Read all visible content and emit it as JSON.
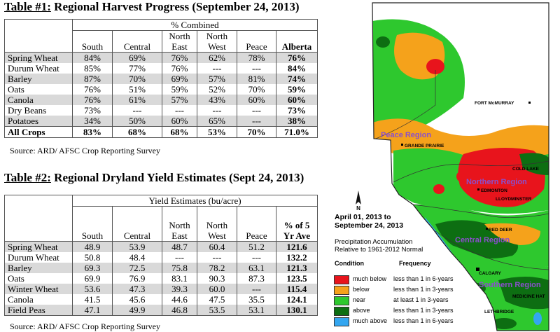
{
  "table1": {
    "title_prefix": "Table #1:",
    "title_rest": " Regional Harvest Progress (September 24, 2013)",
    "group_header": "% Combined",
    "columns": [
      {
        "line1": "",
        "line2": "South"
      },
      {
        "line1": "",
        "line2": "Central"
      },
      {
        "line1": "North",
        "line2": "East"
      },
      {
        "line1": "North",
        "line2": "West"
      },
      {
        "line1": "",
        "line2": "Peace"
      },
      {
        "line1": "",
        "line2": "Alberta"
      }
    ],
    "rows": [
      {
        "crop": "Spring Wheat",
        "values": [
          "84%",
          "69%",
          "76%",
          "62%",
          "78%",
          "76%"
        ]
      },
      {
        "crop": "Durum Wheat",
        "values": [
          "85%",
          "77%",
          "76%",
          "---",
          "---",
          "84%"
        ]
      },
      {
        "crop": "Barley",
        "values": [
          "87%",
          "70%",
          "69%",
          "57%",
          "81%",
          "74%"
        ]
      },
      {
        "crop": "Oats",
        "values": [
          "76%",
          "51%",
          "59%",
          "52%",
          "70%",
          "59%"
        ]
      },
      {
        "crop": "Canola",
        "values": [
          "76%",
          "61%",
          "57%",
          "43%",
          "60%",
          "60%"
        ]
      },
      {
        "crop": "Dry Beans",
        "values": [
          "73%",
          "---",
          "---",
          "---",
          "---",
          "73%"
        ]
      },
      {
        "crop": "Potatoes",
        "values": [
          "34%",
          "50%",
          "60%",
          "65%",
          "---",
          "38%"
        ]
      }
    ],
    "total": {
      "crop": "All Crops",
      "values": [
        "83%",
        "68%",
        "68%",
        "53%",
        "70%",
        "71.0%"
      ]
    },
    "source": "Source: ARD/ AFSC Crop Reporting Survey"
  },
  "table2": {
    "title_prefix": "Table #2:",
    "title_rest": " Regional Dryland Yield Estimates (Sept 24, 2013)",
    "group_header": "Yield Estimates (bu/acre)",
    "columns": [
      {
        "line1": "",
        "line2": "South"
      },
      {
        "line1": "",
        "line2": "Central"
      },
      {
        "line1": "North",
        "line2": "East"
      },
      {
        "line1": "North",
        "line2": "West"
      },
      {
        "line1": "",
        "line2": "Peace"
      },
      {
        "line1": "% of 5",
        "line2": "Yr Ave"
      }
    ],
    "rows": [
      {
        "crop": "Spring Wheat",
        "values": [
          "48.9",
          "53.9",
          "48.7",
          "60.4",
          "51.2",
          "121.6"
        ]
      },
      {
        "crop": "Durum Wheat",
        "values": [
          "50.8",
          "48.4",
          "---",
          "---",
          "---",
          "132.2"
        ]
      },
      {
        "crop": "Barley",
        "values": [
          "69.3",
          "72.5",
          "75.8",
          "78.2",
          "63.1",
          "121.3"
        ]
      },
      {
        "crop": "Oats",
        "values": [
          "69.9",
          "76.9",
          "83.1",
          "90.3",
          "87.3",
          "123.5"
        ]
      },
      {
        "crop": "Winter Wheat",
        "values": [
          "53.6",
          "47.3",
          "39.3",
          "60.0",
          "---",
          "115.4"
        ]
      },
      {
        "crop": "Canola",
        "values": [
          "41.5",
          "45.6",
          "44.6",
          "47.5",
          "35.5",
          "124.1"
        ]
      },
      {
        "crop": "Field Peas",
        "values": [
          "47.1",
          "49.9",
          "46.8",
          "53.5",
          "53.1",
          "130.1"
        ]
      }
    ],
    "source": "Source: ARD/ AFSC Crop Reporting Survey"
  },
  "map": {
    "north_label": "N",
    "title_line1": "April 01, 2013 to",
    "title_line2": "September 24, 2013",
    "subtitle_line1": "Precipitation Accumulation",
    "subtitle_line2": "Relative to 1961-2012 Normal",
    "condition_header": "Condition",
    "frequency_header": "Frequency",
    "legend": [
      {
        "color": "#e8141c",
        "condition": "much below",
        "frequency": "less than 1 in 6-years"
      },
      {
        "color": "#f5a21b",
        "condition": "below",
        "frequency": "less than 1 in 3-years"
      },
      {
        "color": "#2ec82e",
        "condition": "near",
        "frequency": "at least 1 in 3-years"
      },
      {
        "color": "#0d6e12",
        "condition": "above",
        "frequency": "less than 1 in 3-years"
      },
      {
        "color": "#33a6f0",
        "condition": "much above",
        "frequency": "less than 1 in 6-years"
      }
    ],
    "regions": {
      "peace": "Peace Region",
      "northern": "Northern Region",
      "central": "Central Region",
      "southern": "Southern Region"
    },
    "cities": {
      "fort_mcmurray": "FORT McMURRAY",
      "grande_prairie": "GRANDE PRAIRIE",
      "cold_lake": "COLD LAKE",
      "edmonton": "EDMONTON",
      "lloydminster": "LLOYDMINSTER",
      "red_deer": "RED DEER",
      "calgary": "CALGARY",
      "medicine_hat": "MEDICINE HAT",
      "lethbridge": "LETHBRIDGE"
    }
  }
}
